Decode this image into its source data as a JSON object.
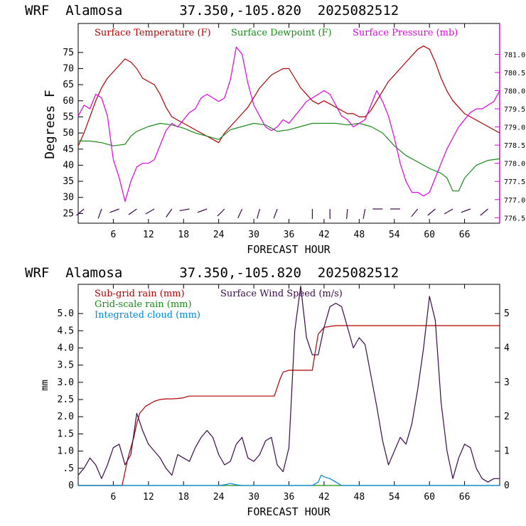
{
  "colors": {
    "temperature": "#b00000",
    "dewpoint": "#1a8a1a",
    "pressure": "#e000e0",
    "subgrid_rain": "#b00000",
    "gridscale_rain": "#1a8a1a",
    "integrated_cloud": "#0088dd",
    "wind": "#3a0a4a",
    "barbs": "#3a0a4a"
  },
  "chart_data": [
    {
      "type": "line",
      "title": "WRF  Alamosa       37.350,-105.820  2025082512",
      "xlabel": "FORECAST HOUR",
      "ylabel": "Degrees F",
      "xlim": [
        0,
        72
      ],
      "ylim": [
        22,
        84
      ],
      "y2lim": [
        776.35,
        781.85
      ],
      "xticks": [
        "6",
        "12",
        "18",
        "24",
        "30",
        "36",
        "42",
        "48",
        "54",
        "60",
        "66"
      ],
      "yticks": [
        "25",
        "30",
        "35",
        "40",
        "45",
        "50",
        "55",
        "60",
        "65",
        "70",
        "75"
      ],
      "y2ticks": [
        "776.5",
        "777.0",
        "777.5",
        "778.0",
        "778.5",
        "779.0",
        "779.5",
        "780.0",
        "780.5",
        "781.0"
      ],
      "legend_position": "top",
      "series": [
        {
          "name": "Surface Temperature (F)",
          "axis": "left",
          "x": [
            0,
            1,
            2,
            3,
            4,
            5,
            6,
            7,
            8,
            9,
            10,
            11,
            12,
            13,
            14,
            15,
            16,
            17,
            18,
            19,
            20,
            21,
            22,
            23,
            24,
            25,
            26,
            27,
            28,
            29,
            30,
            31,
            32,
            33,
            34,
            35,
            36,
            37,
            38,
            39,
            40,
            41,
            42,
            43,
            44,
            45,
            46,
            47,
            48,
            49,
            50,
            51,
            52,
            53,
            54,
            55,
            56,
            57,
            58,
            59,
            60,
            61,
            62,
            63,
            64,
            65,
            66,
            67,
            68,
            69,
            70,
            71,
            72
          ],
          "values": [
            46,
            50,
            55,
            60,
            64,
            67,
            69,
            71,
            73,
            72,
            70,
            67,
            66,
            65,
            62,
            58,
            55,
            54,
            53,
            52,
            51,
            50,
            49,
            48,
            47,
            50,
            52,
            54,
            56,
            58,
            61,
            64,
            66,
            68,
            69,
            70,
            70,
            67,
            64,
            62,
            60,
            59,
            60,
            59,
            58,
            57,
            56,
            56,
            55,
            55,
            57,
            60,
            63,
            66,
            68,
            70,
            72,
            74,
            76,
            77,
            76,
            72,
            67,
            63,
            60,
            58,
            56,
            55,
            54,
            53,
            52,
            51,
            50
          ]
        },
        {
          "name": "Surface Dewpoint (F)",
          "axis": "left",
          "x": [
            0,
            2,
            4,
            6,
            8,
            9,
            10,
            12,
            14,
            16,
            18,
            20,
            22,
            24,
            26,
            28,
            30,
            32,
            34,
            36,
            38,
            40,
            42,
            44,
            46,
            48,
            50,
            52,
            54,
            56,
            58,
            60,
            62,
            63,
            64,
            65,
            66,
            68,
            70,
            72
          ],
          "values": [
            47.5,
            47.5,
            47,
            46,
            46.5,
            49,
            50.5,
            52,
            53,
            52.5,
            51.5,
            50,
            49,
            48,
            51,
            52,
            53,
            52.5,
            50.5,
            51,
            52,
            53,
            53,
            53,
            52.5,
            53,
            52,
            50,
            46,
            43,
            41,
            39,
            37.5,
            36,
            32,
            32,
            36,
            40,
            41.5,
            42
          ]
        },
        {
          "name": "Surface Pressure (mb)",
          "axis": "right",
          "x": [
            0,
            1,
            2,
            3,
            4,
            5,
            6,
            7,
            8,
            9,
            10,
            11,
            12,
            13,
            14,
            15,
            16,
            17,
            18,
            19,
            20,
            21,
            22,
            23,
            24,
            25,
            26,
            27,
            28,
            29,
            30,
            31,
            32,
            33,
            34,
            35,
            36,
            37,
            38,
            39,
            40,
            41,
            42,
            43,
            44,
            45,
            46,
            47,
            48,
            49,
            50,
            51,
            52,
            53,
            54,
            55,
            56,
            57,
            58,
            59,
            60,
            61,
            62,
            63,
            64,
            65,
            66,
            67,
            68,
            69,
            70,
            71,
            72
          ],
          "values": [
            779.3,
            779.6,
            779.5,
            779.9,
            779.8,
            779.3,
            778.1,
            777.6,
            776.95,
            777.5,
            777.9,
            778.0,
            778.0,
            778.1,
            778.5,
            778.9,
            779.1,
            779.0,
            779.2,
            779.4,
            779.5,
            779.8,
            779.9,
            779.8,
            779.7,
            779.8,
            780.3,
            781.2,
            781.0,
            780.2,
            779.6,
            779.3,
            779.0,
            778.9,
            779.0,
            779.2,
            779.1,
            779.3,
            779.5,
            779.7,
            779.8,
            779.9,
            780.0,
            779.9,
            779.6,
            779.3,
            779.2,
            779.0,
            779.1,
            779.2,
            779.6,
            780.0,
            779.7,
            779.3,
            778.7,
            778.0,
            777.5,
            777.2,
            777.2,
            777.1,
            777.2,
            777.6,
            778.0,
            778.4,
            778.7,
            779.0,
            779.2,
            779.4,
            779.5,
            779.5,
            779.6,
            779.7,
            780.0
          ]
        }
      ],
      "wind_barbs": {
        "x": [
          1,
          4,
          7,
          10,
          13,
          16,
          19,
          22,
          25,
          28,
          31,
          34,
          40,
          43,
          46,
          49,
          52,
          55,
          58,
          61,
          64,
          67,
          70
        ],
        "direction_deg": [
          230,
          200,
          250,
          235,
          240,
          215,
          260,
          250,
          225,
          205,
          195,
          200,
          180,
          180,
          185,
          190,
          270,
          270,
          220,
          230,
          240,
          250,
          230
        ]
      }
    },
    {
      "type": "line",
      "title": "WRF  Alamosa       37.350,-105.820  2025082512",
      "xlabel": "FORECAST HOUR",
      "ylabel": "mm",
      "xlim": [
        0,
        72
      ],
      "ylim": [
        0,
        5.85
      ],
      "y2lim": [
        0,
        5.85
      ],
      "xticks": [
        "6",
        "12",
        "18",
        "24",
        "30",
        "36",
        "42",
        "48",
        "54",
        "60",
        "66"
      ],
      "yticks": [
        "0",
        ".5",
        "1.0",
        "1.5",
        "2.0",
        "2.5",
        "3.0",
        "3.5",
        "4.0",
        "4.5",
        "5.0"
      ],
      "y2ticks": [
        "0",
        "1",
        "2",
        "3",
        "4",
        "5"
      ],
      "legend_position": "top",
      "series": [
        {
          "name": "Sub-grid rain (mm)",
          "axis": "left",
          "x": [
            0,
            7.5,
            8.5,
            9.5,
            10,
            10.5,
            11,
            11.5,
            12,
            12.5,
            13,
            14,
            15,
            16,
            17,
            18,
            18.5,
            19,
            20,
            22,
            24,
            26,
            28,
            30,
            32,
            33.5,
            34,
            34.5,
            35,
            36,
            38,
            40,
            40.5,
            41,
            41.5,
            42,
            44,
            46,
            48,
            50,
            52,
            54,
            56,
            58,
            60,
            62,
            64,
            66,
            68,
            70,
            72
          ],
          "values": [
            0,
            0,
            0.8,
            1.4,
            1.8,
            2.1,
            2.2,
            2.3,
            2.35,
            2.4,
            2.45,
            2.5,
            2.52,
            2.52,
            2.53,
            2.55,
            2.58,
            2.6,
            2.6,
            2.6,
            2.6,
            2.6,
            2.6,
            2.6,
            2.6,
            2.6,
            2.85,
            3.1,
            3.3,
            3.35,
            3.35,
            3.35,
            3.9,
            4.4,
            4.5,
            4.6,
            4.65,
            4.65,
            4.65,
            4.65,
            4.65,
            4.65,
            4.65,
            4.65,
            4.65,
            4.65,
            4.65,
            4.65,
            4.65,
            4.65,
            4.65
          ]
        },
        {
          "name": "Grid-scale rain (mm)",
          "axis": "left",
          "x": [
            0,
            72
          ],
          "values": [
            0,
            0
          ]
        },
        {
          "name": "Integrated cloud (mm)",
          "axis": "left",
          "x": [
            0,
            24,
            25,
            26,
            27,
            28,
            40,
            41,
            41.5,
            42,
            43,
            44,
            45,
            72
          ],
          "values": [
            0,
            0,
            0.02,
            0.06,
            0.02,
            0,
            0,
            0.1,
            0.3,
            0.25,
            0.2,
            0.1,
            0,
            0
          ]
        },
        {
          "name": "Surface Wind Speed (m/s)",
          "axis": "right",
          "x": [
            0,
            1,
            2,
            3,
            4,
            5,
            6,
            7,
            8,
            9,
            10,
            11,
            12,
            13,
            14,
            15,
            16,
            17,
            18,
            19,
            20,
            21,
            22,
            23,
            24,
            25,
            26,
            27,
            28,
            29,
            30,
            31,
            32,
            33,
            34,
            35,
            36,
            37,
            38,
            39,
            40,
            41,
            42,
            43,
            44,
            45,
            46,
            47,
            48,
            49,
            50,
            51,
            52,
            53,
            54,
            55,
            56,
            57,
            58,
            59,
            60,
            61,
            62,
            63,
            64,
            65,
            66,
            67,
            68,
            69,
            70,
            71,
            72
          ],
          "values": [
            0.3,
            0.5,
            0.8,
            0.6,
            0.2,
            0.6,
            1.1,
            1.2,
            0.6,
            0.9,
            2.1,
            1.6,
            1.2,
            1.0,
            0.8,
            0.5,
            0.3,
            0.9,
            0.8,
            0.7,
            1.1,
            1.4,
            1.6,
            1.4,
            0.9,
            0.6,
            0.7,
            1.2,
            1.4,
            0.8,
            0.7,
            0.9,
            1.3,
            1.4,
            0.6,
            0.4,
            1.1,
            4.5,
            5.8,
            4.3,
            3.8,
            3.8,
            4.6,
            5.2,
            5.3,
            5.2,
            4.6,
            4.0,
            4.3,
            4.1,
            3.2,
            2.3,
            1.3,
            0.6,
            1.0,
            1.4,
            1.2,
            1.8,
            2.8,
            4.0,
            5.5,
            4.8,
            2.4,
            1.0,
            0.2,
            0.8,
            1.2,
            1.1,
            0.5,
            0.2,
            0.1,
            0.2,
            0.2
          ]
        }
      ]
    }
  ]
}
